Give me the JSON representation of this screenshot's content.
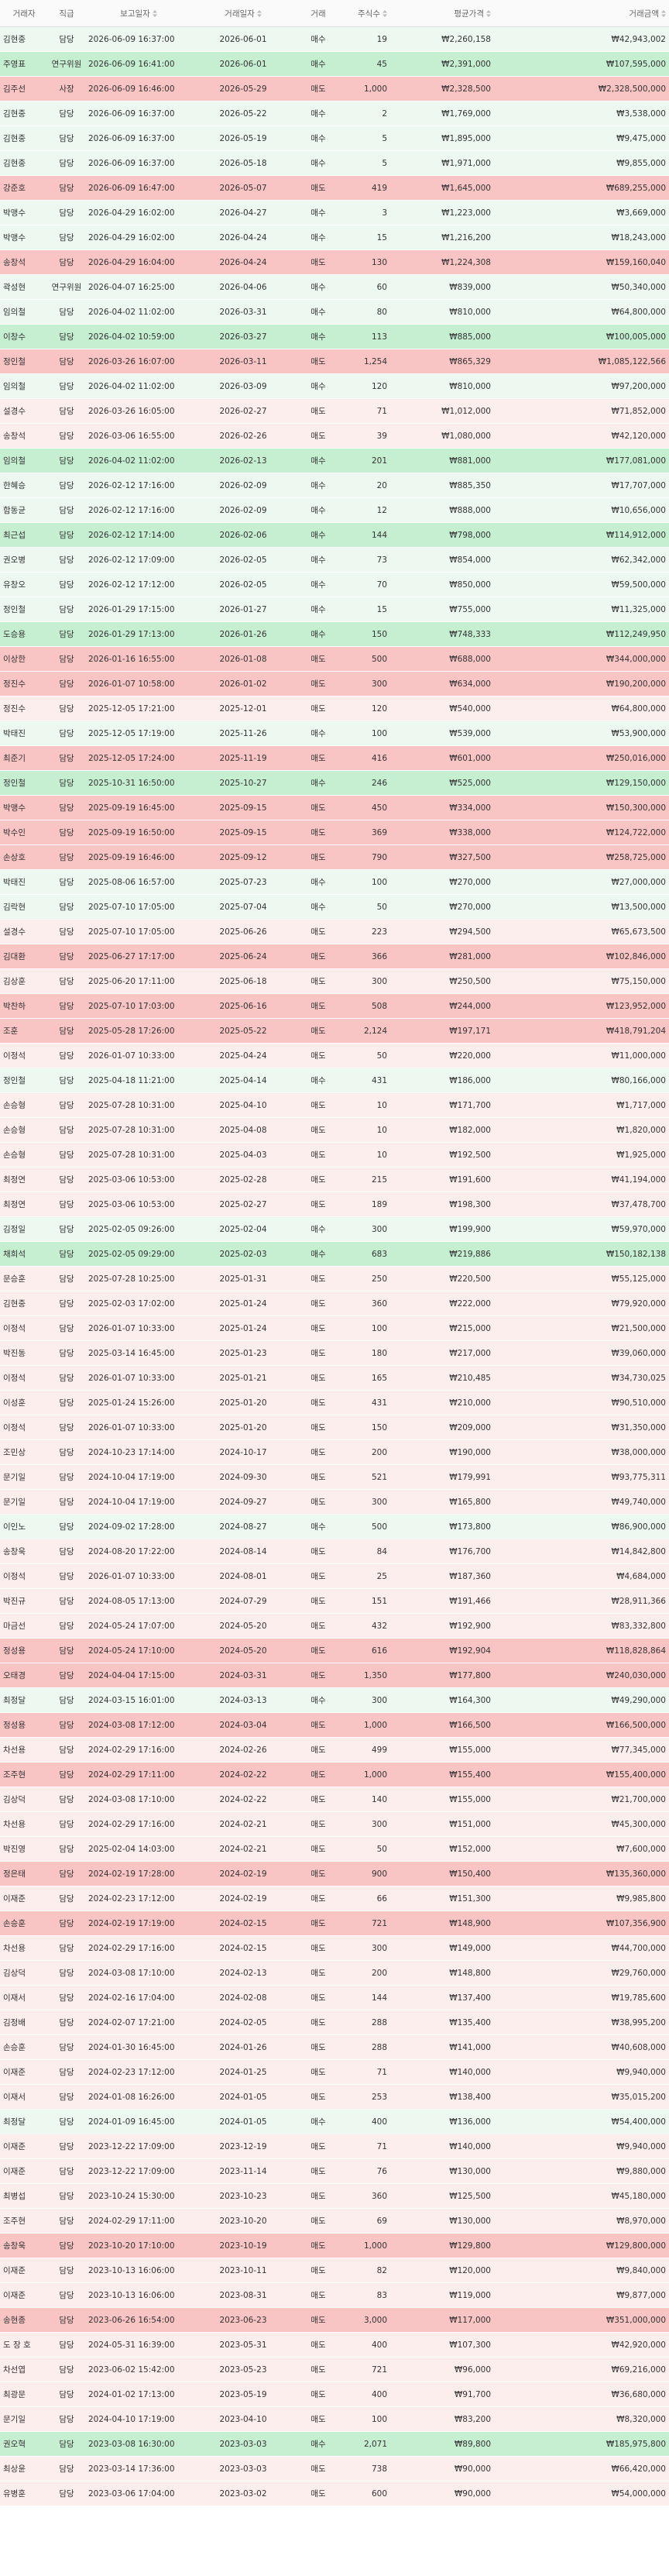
{
  "table": {
    "columns": [
      "거래자",
      "직급",
      "보고일자",
      "거래일자",
      "거래",
      "주식수",
      "평균가격",
      "거래금액"
    ],
    "rows": [
      [
        "김현중",
        "담당",
        "2026-06-09 16:37:00",
        "2026-06-01",
        "매수",
        "19",
        "₩2,260,158",
        "₩42,943,002"
      ],
      [
        "주영표",
        "연구위원",
        "2026-06-09 16:41:00",
        "2026-06-01",
        "매수",
        "45",
        "₩2,391,000",
        "₩107,595,000"
      ],
      [
        "김주선",
        "사장",
        "2026-06-09 16:46:00",
        "2026-05-29",
        "매도",
        "1,000",
        "₩2,328,500",
        "₩2,328,500,000"
      ],
      [
        "김현중",
        "담당",
        "2026-06-09 16:37:00",
        "2026-05-22",
        "매수",
        "2",
        "₩1,769,000",
        "₩3,538,000"
      ],
      [
        "김현중",
        "담당",
        "2026-06-09 16:37:00",
        "2026-05-19",
        "매수",
        "5",
        "₩1,895,000",
        "₩9,475,000"
      ],
      [
        "김현중",
        "담당",
        "2026-06-09 16:37:00",
        "2026-05-18",
        "매수",
        "5",
        "₩1,971,000",
        "₩9,855,000"
      ],
      [
        "강준호",
        "담당",
        "2026-06-09 16:47:00",
        "2026-05-07",
        "매도",
        "419",
        "₩1,645,000",
        "₩689,255,000"
      ],
      [
        "박맹수",
        "담당",
        "2026-04-29 16:02:00",
        "2026-04-27",
        "매수",
        "3",
        "₩1,223,000",
        "₩3,669,000"
      ],
      [
        "박맹수",
        "담당",
        "2026-04-29 16:02:00",
        "2026-04-24",
        "매수",
        "15",
        "₩1,216,200",
        "₩18,243,000"
      ],
      [
        "송창석",
        "담당",
        "2026-04-29 16:04:00",
        "2026-04-24",
        "매도",
        "130",
        "₩1,224,308",
        "₩159,160,040"
      ],
      [
        "곽성현",
        "연구위원",
        "2026-04-07 16:25:00",
        "2026-04-06",
        "매수",
        "60",
        "₩839,000",
        "₩50,340,000"
      ],
      [
        "임의철",
        "담당",
        "2026-04-02 11:02:00",
        "2026-03-31",
        "매수",
        "80",
        "₩810,000",
        "₩64,800,000"
      ],
      [
        "이창수",
        "담당",
        "2026-04-02 10:59:00",
        "2026-03-27",
        "매수",
        "113",
        "₩885,000",
        "₩100,005,000"
      ],
      [
        "정인철",
        "담당",
        "2026-03-26 16:07:00",
        "2026-03-11",
        "매도",
        "1,254",
        "₩865,329",
        "₩1,085,122,566"
      ],
      [
        "임의철",
        "담당",
        "2026-04-02 11:02:00",
        "2026-03-09",
        "매수",
        "120",
        "₩810,000",
        "₩97,200,000"
      ],
      [
        "설경수",
        "담당",
        "2026-03-26 16:05:00",
        "2026-02-27",
        "매도",
        "71",
        "₩1,012,000",
        "₩71,852,000"
      ],
      [
        "송창석",
        "담당",
        "2026-03-06 16:55:00",
        "2026-02-26",
        "매도",
        "39",
        "₩1,080,000",
        "₩42,120,000"
      ],
      [
        "임의철",
        "담당",
        "2026-04-02 11:02:00",
        "2026-02-13",
        "매수",
        "201",
        "₩881,000",
        "₩177,081,000"
      ],
      [
        "한혜승",
        "담당",
        "2026-02-12 17:16:00",
        "2026-02-09",
        "매수",
        "20",
        "₩885,350",
        "₩17,707,000"
      ],
      [
        "함동균",
        "담당",
        "2026-02-12 17:16:00",
        "2026-02-09",
        "매수",
        "12",
        "₩888,000",
        "₩10,656,000"
      ],
      [
        "최근섭",
        "담당",
        "2026-02-12 17:14:00",
        "2026-02-06",
        "매수",
        "144",
        "₩798,000",
        "₩114,912,000"
      ],
      [
        "권오병",
        "담당",
        "2026-02-12 17:09:00",
        "2026-02-05",
        "매수",
        "73",
        "₩854,000",
        "₩62,342,000"
      ],
      [
        "유창오",
        "담당",
        "2026-02-12 17:12:00",
        "2026-02-05",
        "매수",
        "70",
        "₩850,000",
        "₩59,500,000"
      ],
      [
        "정인철",
        "담당",
        "2026-01-29 17:15:00",
        "2026-01-27",
        "매수",
        "15",
        "₩755,000",
        "₩11,325,000"
      ],
      [
        "도승용",
        "담당",
        "2026-01-29 17:13:00",
        "2026-01-26",
        "매수",
        "150",
        "₩748,333",
        "₩112,249,950"
      ],
      [
        "이상한",
        "담당",
        "2026-01-16 16:55:00",
        "2026-01-08",
        "매도",
        "500",
        "₩688,000",
        "₩344,000,000"
      ],
      [
        "정진수",
        "담당",
        "2026-01-07 10:58:00",
        "2026-01-02",
        "매도",
        "300",
        "₩634,000",
        "₩190,200,000"
      ],
      [
        "정진수",
        "담당",
        "2025-12-05 17:21:00",
        "2025-12-01",
        "매도",
        "120",
        "₩540,000",
        "₩64,800,000"
      ],
      [
        "박태진",
        "담당",
        "2025-12-05 17:19:00",
        "2025-11-26",
        "매수",
        "100",
        "₩539,000",
        "₩53,900,000"
      ],
      [
        "최준기",
        "담당",
        "2025-12-05 17:24:00",
        "2025-11-19",
        "매도",
        "416",
        "₩601,000",
        "₩250,016,000"
      ],
      [
        "정인철",
        "담당",
        "2025-10-31 16:50:00",
        "2025-10-27",
        "매수",
        "246",
        "₩525,000",
        "₩129,150,000"
      ],
      [
        "박맹수",
        "담당",
        "2025-09-19 16:45:00",
        "2025-09-15",
        "매도",
        "450",
        "₩334,000",
        "₩150,300,000"
      ],
      [
        "박수인",
        "담당",
        "2025-09-19 16:50:00",
        "2025-09-15",
        "매도",
        "369",
        "₩338,000",
        "₩124,722,000"
      ],
      [
        "손상호",
        "담당",
        "2025-09-19 16:46:00",
        "2025-09-12",
        "매도",
        "790",
        "₩327,500",
        "₩258,725,000"
      ],
      [
        "박태진",
        "담당",
        "2025-08-06 16:57:00",
        "2025-07-23",
        "매수",
        "100",
        "₩270,000",
        "₩27,000,000"
      ],
      [
        "김락현",
        "담당",
        "2025-07-10 17:05:00",
        "2025-07-04",
        "매수",
        "50",
        "₩270,000",
        "₩13,500,000"
      ],
      [
        "설경수",
        "담당",
        "2025-07-10 17:05:00",
        "2025-06-26",
        "매도",
        "223",
        "₩294,500",
        "₩65,673,500"
      ],
      [
        "김대환",
        "담당",
        "2025-06-27 17:17:00",
        "2025-06-24",
        "매도",
        "366",
        "₩281,000",
        "₩102,846,000"
      ],
      [
        "김상훈",
        "담당",
        "2025-06-20 17:11:00",
        "2025-06-18",
        "매도",
        "300",
        "₩250,500",
        "₩75,150,000"
      ],
      [
        "박찬하",
        "담당",
        "2025-07-10 17:03:00",
        "2025-06-16",
        "매도",
        "508",
        "₩244,000",
        "₩123,952,000"
      ],
      [
        "조훈",
        "담당",
        "2025-05-28 17:26:00",
        "2025-05-22",
        "매도",
        "2,124",
        "₩197,171",
        "₩418,791,204"
      ],
      [
        "이정석",
        "담당",
        "2026-01-07 10:33:00",
        "2025-04-24",
        "매도",
        "50",
        "₩220,000",
        "₩11,000,000"
      ],
      [
        "정인철",
        "담당",
        "2025-04-18 11:21:00",
        "2025-04-14",
        "매수",
        "431",
        "₩186,000",
        "₩80,166,000"
      ],
      [
        "손승형",
        "담당",
        "2025-07-28 10:31:00",
        "2025-04-10",
        "매도",
        "10",
        "₩171,700",
        "₩1,717,000"
      ],
      [
        "손승형",
        "담당",
        "2025-07-28 10:31:00",
        "2025-04-08",
        "매도",
        "10",
        "₩182,000",
        "₩1,820,000"
      ],
      [
        "손승형",
        "담당",
        "2025-07-28 10:31:00",
        "2025-04-03",
        "매도",
        "10",
        "₩192,500",
        "₩1,925,000"
      ],
      [
        "최정연",
        "담당",
        "2025-03-06 10:53:00",
        "2025-02-28",
        "매도",
        "215",
        "₩191,600",
        "₩41,194,000"
      ],
      [
        "최정연",
        "담당",
        "2025-03-06 10:53:00",
        "2025-02-27",
        "매도",
        "189",
        "₩198,300",
        "₩37,478,700"
      ],
      [
        "김정일",
        "담당",
        "2025-02-05 09:26:00",
        "2025-02-04",
        "매수",
        "300",
        "₩199,900",
        "₩59,970,000"
      ],
      [
        "채희석",
        "담당",
        "2025-02-05 09:29:00",
        "2025-02-03",
        "매수",
        "683",
        "₩219,886",
        "₩150,182,138"
      ],
      [
        "문승훈",
        "담당",
        "2025-07-28 10:25:00",
        "2025-01-31",
        "매도",
        "250",
        "₩220,500",
        "₩55,125,000"
      ],
      [
        "김현중",
        "담당",
        "2025-02-03 17:02:00",
        "2025-01-24",
        "매도",
        "360",
        "₩222,000",
        "₩79,920,000"
      ],
      [
        "이정석",
        "담당",
        "2026-01-07 10:33:00",
        "2025-01-24",
        "매도",
        "100",
        "₩215,000",
        "₩21,500,000"
      ],
      [
        "박진동",
        "담당",
        "2025-03-14 16:45:00",
        "2025-01-23",
        "매도",
        "180",
        "₩217,000",
        "₩39,060,000"
      ],
      [
        "이정석",
        "담당",
        "2026-01-07 10:33:00",
        "2025-01-21",
        "매도",
        "165",
        "₩210,485",
        "₩34,730,025"
      ],
      [
        "이성훈",
        "담당",
        "2025-01-24 15:26:00",
        "2025-01-20",
        "매도",
        "431",
        "₩210,000",
        "₩90,510,000"
      ],
      [
        "이정석",
        "담당",
        "2026-01-07 10:33:00",
        "2025-01-20",
        "매도",
        "150",
        "₩209,000",
        "₩31,350,000"
      ],
      [
        "조민상",
        "담당",
        "2024-10-23 17:14:00",
        "2024-10-17",
        "매도",
        "200",
        "₩190,000",
        "₩38,000,000"
      ],
      [
        "문기일",
        "담당",
        "2024-10-04 17:19:00",
        "2024-09-30",
        "매도",
        "521",
        "₩179,991",
        "₩93,775,311"
      ],
      [
        "문기일",
        "담당",
        "2024-10-04 17:19:00",
        "2024-09-27",
        "매도",
        "300",
        "₩165,800",
        "₩49,740,000"
      ],
      [
        "이인노",
        "담당",
        "2024-09-02 17:28:00",
        "2024-08-27",
        "매수",
        "500",
        "₩173,800",
        "₩86,900,000"
      ],
      [
        "송창욱",
        "담당",
        "2024-08-20 17:22:00",
        "2024-08-14",
        "매도",
        "84",
        "₩176,700",
        "₩14,842,800"
      ],
      [
        "이정석",
        "담당",
        "2026-01-07 10:33:00",
        "2024-08-01",
        "매도",
        "25",
        "₩187,360",
        "₩4,684,000"
      ],
      [
        "박진규",
        "담당",
        "2024-08-05 17:13:00",
        "2024-07-29",
        "매도",
        "151",
        "₩191,466",
        "₩28,911,366"
      ],
      [
        "마금선",
        "담당",
        "2024-05-24 17:07:00",
        "2024-05-20",
        "매도",
        "432",
        "₩192,900",
        "₩83,332,800"
      ],
      [
        "정성용",
        "담당",
        "2024-05-24 17:10:00",
        "2024-05-20",
        "매도",
        "616",
        "₩192,904",
        "₩118,828,864"
      ],
      [
        "오태경",
        "담당",
        "2024-04-04 17:15:00",
        "2024-03-31",
        "매도",
        "1,350",
        "₩177,800",
        "₩240,030,000"
      ],
      [
        "최정달",
        "담당",
        "2024-03-15 16:01:00",
        "2024-03-13",
        "매수",
        "300",
        "₩164,300",
        "₩49,290,000"
      ],
      [
        "정성용",
        "담당",
        "2024-03-08 17:12:00",
        "2024-03-04",
        "매도",
        "1,000",
        "₩166,500",
        "₩166,500,000"
      ],
      [
        "차선용",
        "담당",
        "2024-02-29 17:16:00",
        "2024-02-26",
        "매도",
        "499",
        "₩155,000",
        "₩77,345,000"
      ],
      [
        "조주현",
        "담당",
        "2024-02-29 17:11:00",
        "2024-02-22",
        "매도",
        "1,000",
        "₩155,400",
        "₩155,400,000"
      ],
      [
        "김상덕",
        "담당",
        "2024-03-08 17:10:00",
        "2024-02-22",
        "매도",
        "140",
        "₩155,000",
        "₩21,700,000"
      ],
      [
        "차선용",
        "담당",
        "2024-02-29 17:16:00",
        "2024-02-21",
        "매도",
        "300",
        "₩151,000",
        "₩45,300,000"
      ],
      [
        "박진영",
        "담당",
        "2025-02-04 14:03:00",
        "2024-02-21",
        "매도",
        "50",
        "₩152,000",
        "₩7,600,000"
      ],
      [
        "정은태",
        "담당",
        "2024-02-19 17:28:00",
        "2024-02-19",
        "매도",
        "900",
        "₩150,400",
        "₩135,360,000"
      ],
      [
        "이재준",
        "담당",
        "2024-02-23 17:12:00",
        "2024-02-19",
        "매도",
        "66",
        "₩151,300",
        "₩9,985,800"
      ],
      [
        "손승훈",
        "담당",
        "2024-02-19 17:19:00",
        "2024-02-15",
        "매도",
        "721",
        "₩148,900",
        "₩107,356,900"
      ],
      [
        "차선용",
        "담당",
        "2024-02-29 17:16:00",
        "2024-02-15",
        "매도",
        "300",
        "₩149,000",
        "₩44,700,000"
      ],
      [
        "김상덕",
        "담당",
        "2024-03-08 17:10:00",
        "2024-02-13",
        "매도",
        "200",
        "₩148,800",
        "₩29,760,000"
      ],
      [
        "이재서",
        "담당",
        "2024-02-16 17:04:00",
        "2024-02-08",
        "매도",
        "144",
        "₩137,400",
        "₩19,785,600"
      ],
      [
        "김정배",
        "담당",
        "2024-02-07 17:21:00",
        "2024-02-05",
        "매도",
        "288",
        "₩135,400",
        "₩38,995,200"
      ],
      [
        "손승훈",
        "담당",
        "2024-01-30 16:45:00",
        "2024-01-26",
        "매도",
        "288",
        "₩141,000",
        "₩40,608,000"
      ],
      [
        "이재준",
        "담당",
        "2024-02-23 17:12:00",
        "2024-01-25",
        "매도",
        "71",
        "₩140,000",
        "₩9,940,000"
      ],
      [
        "이재서",
        "담당",
        "2024-01-08 16:26:00",
        "2024-01-05",
        "매도",
        "253",
        "₩138,400",
        "₩35,015,200"
      ],
      [
        "최정달",
        "담당",
        "2024-01-09 16:45:00",
        "2024-01-05",
        "매수",
        "400",
        "₩136,000",
        "₩54,400,000"
      ],
      [
        "이재준",
        "담당",
        "2023-12-22 17:09:00",
        "2023-12-19",
        "매도",
        "71",
        "₩140,000",
        "₩9,940,000"
      ],
      [
        "이재준",
        "담당",
        "2023-12-22 17:09:00",
        "2023-11-14",
        "매도",
        "76",
        "₩130,000",
        "₩9,880,000"
      ],
      [
        "최병섭",
        "담당",
        "2023-10-24 15:30:00",
        "2023-10-23",
        "매도",
        "360",
        "₩125,500",
        "₩45,180,000"
      ],
      [
        "조주현",
        "담당",
        "2024-02-29 17:11:00",
        "2023-10-20",
        "매도",
        "69",
        "₩130,000",
        "₩8,970,000"
      ],
      [
        "송창욱",
        "담당",
        "2023-10-20 17:10:00",
        "2023-10-19",
        "매도",
        "1,000",
        "₩129,800",
        "₩129,800,000"
      ],
      [
        "이재준",
        "담당",
        "2023-10-13 16:06:00",
        "2023-10-11",
        "매도",
        "82",
        "₩120,000",
        "₩9,840,000"
      ],
      [
        "이재준",
        "담당",
        "2023-10-13 16:06:00",
        "2023-08-31",
        "매도",
        "83",
        "₩119,000",
        "₩9,877,000"
      ],
      [
        "송현종",
        "담당",
        "2023-06-26 16:54:00",
        "2023-06-23",
        "매도",
        "3,000",
        "₩117,000",
        "₩351,000,000"
      ],
      [
        "도 장 호",
        "담당",
        "2024-05-31 16:39:00",
        "2023-05-31",
        "매도",
        "400",
        "₩107,300",
        "₩42,920,000"
      ],
      [
        "차선엽",
        "담당",
        "2023-06-02 15:42:00",
        "2023-05-23",
        "매도",
        "721",
        "₩96,000",
        "₩69,216,000"
      ],
      [
        "최광문",
        "담당",
        "2024-01-02 17:13:00",
        "2023-05-19",
        "매도",
        "400",
        "₩91,700",
        "₩36,680,000"
      ],
      [
        "문기일",
        "담당",
        "2024-04-10 17:19:00",
        "2023-04-10",
        "매도",
        "100",
        "₩83,200",
        "₩8,320,000"
      ],
      [
        "권오혁",
        "담당",
        "2023-03-08 16:30:00",
        "2023-03-03",
        "매수",
        "2,071",
        "₩89,800",
        "₩185,975,800"
      ],
      [
        "최상윤",
        "담당",
        "2023-03-14 17:36:00",
        "2023-03-03",
        "매도",
        "738",
        "₩90,000",
        "₩66,420,000"
      ],
      [
        "유병훈",
        "담당",
        "2023-03-06 17:04:00",
        "2023-03-02",
        "매도",
        "600",
        "₩90,000",
        "₩54,000,000"
      ]
    ]
  }
}
